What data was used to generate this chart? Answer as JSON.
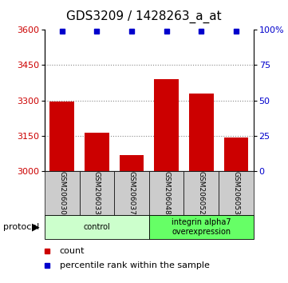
{
  "title": "GDS3209 / 1428263_a_at",
  "categories": [
    "GSM206030",
    "GSM206033",
    "GSM206037",
    "GSM206048",
    "GSM206052",
    "GSM206053"
  ],
  "bar_values": [
    3295,
    3162,
    3068,
    3390,
    3328,
    3142
  ],
  "percentile_values": [
    99,
    99,
    99,
    99,
    99,
    99
  ],
  "bar_color": "#cc0000",
  "dot_color": "#0000cc",
  "ylim_left": [
    3000,
    3600
  ],
  "ylim_right": [
    0,
    100
  ],
  "yticks_left": [
    3000,
    3150,
    3300,
    3450,
    3600
  ],
  "yticks_right": [
    0,
    25,
    50,
    75,
    100
  ],
  "ytick_labels_right": [
    "0",
    "25",
    "50",
    "75",
    "100%"
  ],
  "groups": [
    {
      "label": "control",
      "indices": [
        0,
        1,
        2
      ],
      "color": "#ccffcc"
    },
    {
      "label": "integrin alpha7\noverexpression",
      "indices": [
        3,
        4,
        5
      ],
      "color": "#66ff66"
    }
  ],
  "protocol_label": "protocol",
  "legend_items": [
    {
      "color": "#cc0000",
      "label": "count"
    },
    {
      "color": "#0000cc",
      "label": "percentile rank within the sample"
    }
  ],
  "label_box_color": "#cccccc",
  "dotted_line_color": "#888888",
  "bar_width": 0.7,
  "title_fontsize": 11,
  "tick_fontsize": 8,
  "label_fontsize": 8
}
